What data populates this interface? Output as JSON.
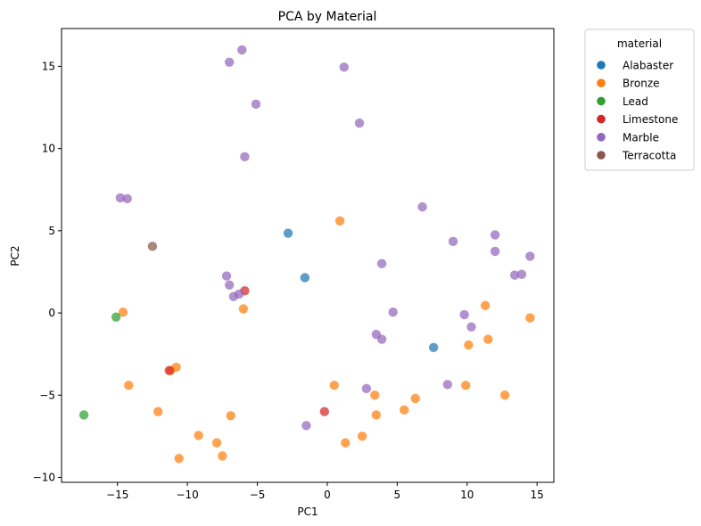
{
  "chart_data": {
    "type": "scatter",
    "title": "PCA by Material",
    "xlabel": "PC1",
    "ylabel": "PC2",
    "xlim": [
      -19,
      16.2
    ],
    "ylim": [
      -10.3,
      17.3
    ],
    "xticks": [
      -15,
      -10,
      -5,
      0,
      5,
      10,
      15
    ],
    "yticks": [
      -10,
      -5,
      0,
      5,
      10,
      15
    ],
    "grid": false,
    "legend": {
      "title": "material",
      "placement": "outside-top-right"
    },
    "series": [
      {
        "name": "Alabaster",
        "color": "#1f77b4",
        "points": [
          [
            -2.8,
            4.85
          ],
          [
            -1.6,
            2.15
          ],
          [
            7.6,
            -2.1
          ]
        ]
      },
      {
        "name": "Bronze",
        "color": "#ff7f0e",
        "points": [
          [
            -14.6,
            0.05
          ],
          [
            -14.2,
            -4.4
          ],
          [
            -12.1,
            -6.0
          ],
          [
            -11.2,
            -3.5
          ],
          [
            -10.8,
            -3.3
          ],
          [
            -10.6,
            -8.85
          ],
          [
            -9.2,
            -7.45
          ],
          [
            -7.9,
            -7.9
          ],
          [
            -7.5,
            -8.7
          ],
          [
            -6.9,
            -6.25
          ],
          [
            -6.0,
            0.25
          ],
          [
            0.5,
            -4.4
          ],
          [
            0.9,
            5.6
          ],
          [
            1.3,
            -7.9
          ],
          [
            2.5,
            -7.5
          ],
          [
            3.4,
            -5.0
          ],
          [
            3.5,
            -6.2
          ],
          [
            5.5,
            -5.9
          ],
          [
            6.3,
            -5.2
          ],
          [
            9.9,
            -4.4
          ],
          [
            10.1,
            -1.95
          ],
          [
            11.3,
            0.45
          ],
          [
            11.5,
            -1.6
          ],
          [
            12.7,
            -5.0
          ],
          [
            14.5,
            -0.3
          ]
        ]
      },
      {
        "name": "Lead",
        "color": "#2ca02c",
        "points": [
          [
            -17.4,
            -6.2
          ],
          [
            -15.1,
            -0.25
          ]
        ]
      },
      {
        "name": "Limestone",
        "color": "#d62728",
        "points": [
          [
            -11.3,
            -3.5
          ],
          [
            -5.9,
            1.35
          ],
          [
            -0.2,
            -6.0
          ]
        ]
      },
      {
        "name": "Marble",
        "color": "#9467bd",
        "points": [
          [
            -6.1,
            16.0
          ],
          [
            -7.0,
            15.25
          ],
          [
            1.2,
            14.95
          ],
          [
            -5.1,
            12.7
          ],
          [
            2.3,
            11.55
          ],
          [
            -5.9,
            9.5
          ],
          [
            -14.8,
            7.0
          ],
          [
            -14.3,
            6.95
          ],
          [
            6.8,
            6.45
          ],
          [
            9.0,
            4.35
          ],
          [
            12.0,
            4.75
          ],
          [
            12.0,
            3.75
          ],
          [
            14.5,
            3.45
          ],
          [
            3.9,
            3.0
          ],
          [
            13.4,
            2.3
          ],
          [
            13.9,
            2.35
          ],
          [
            -7.2,
            2.25
          ],
          [
            -7.0,
            1.7
          ],
          [
            -6.3,
            1.15
          ],
          [
            -6.7,
            1.0
          ],
          [
            4.7,
            0.05
          ],
          [
            9.8,
            -0.1
          ],
          [
            10.3,
            -0.85
          ],
          [
            3.5,
            -1.3
          ],
          [
            3.9,
            -1.6
          ],
          [
            2.8,
            -4.6
          ],
          [
            8.6,
            -4.35
          ],
          [
            -1.5,
            -6.85
          ]
        ]
      },
      {
        "name": "Terracotta",
        "color": "#8c564b",
        "points": [
          [
            -12.5,
            4.05
          ]
        ]
      }
    ]
  }
}
